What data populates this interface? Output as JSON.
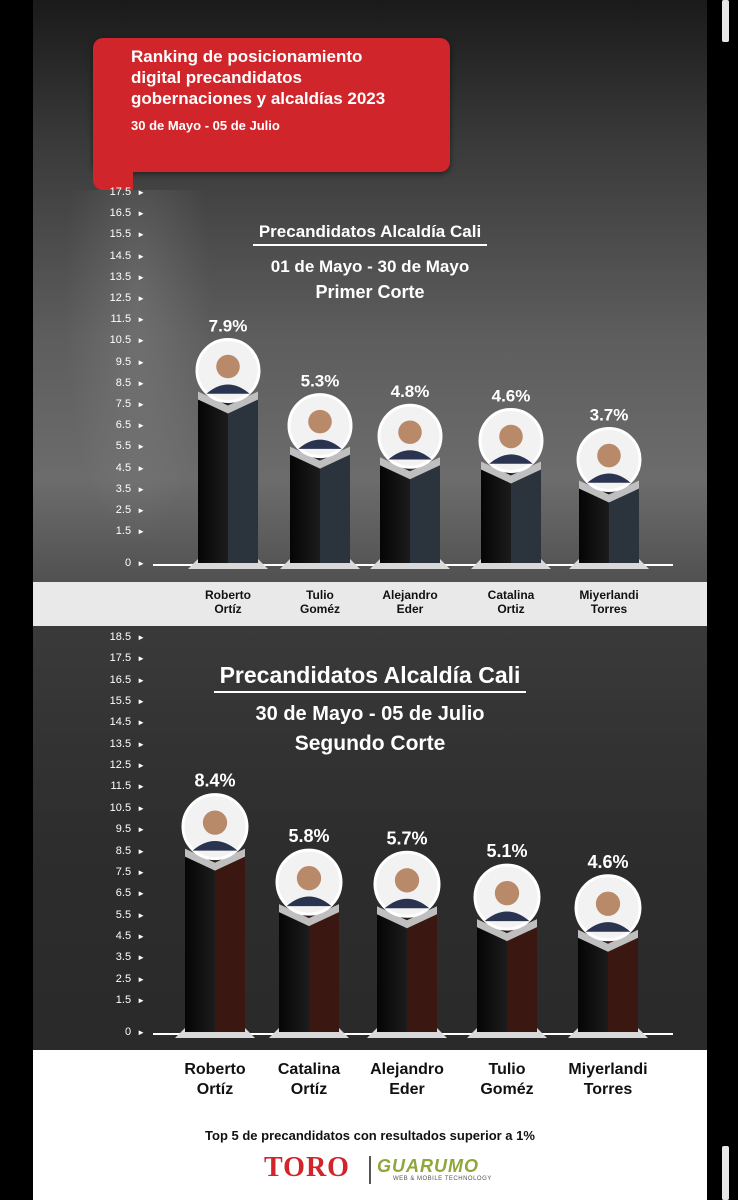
{
  "header": {
    "title": "Ranking de posicionamiento\ndigital precandidatos\ngobernaciones y alcaldías 2023",
    "date_range": "30 de Mayo - 05 de Julio"
  },
  "chart_data": [
    {
      "type": "bar",
      "title": "Precandidatos Alcaldía Cali",
      "subtitle": "01 de Mayo - 30 de Mayo",
      "subtitle2": "Primer Corte",
      "categories": [
        "Roberto\nOrtíz",
        "Tulio\nGoméz",
        "Alejandro\nEder",
        "Catalina\nOrtiz",
        "Miyerlandi\nTorres"
      ],
      "values": [
        7.9,
        5.3,
        4.8,
        4.6,
        3.7
      ],
      "value_labels": [
        "7.9%",
        "5.3%",
        "4.8%",
        "4.6%",
        "3.7%"
      ],
      "yticks": [
        "0",
        "1.5",
        "2.5",
        "3.5",
        "4.5",
        "5.5",
        "6.5",
        "7.5",
        "8.5",
        "9.5",
        "10.5",
        "11.5",
        "12.5",
        "13.5",
        "14.5",
        "15.5",
        "16.5",
        "17.5"
      ],
      "ylim": [
        0,
        17.5
      ],
      "accent_color": "#2b343d"
    },
    {
      "type": "bar",
      "title": "Precandidatos Alcaldía Cali",
      "subtitle": "30 de Mayo - 05 de Julio",
      "subtitle2": "Segundo Corte",
      "categories": [
        "Roberto\nOrtíz",
        "Catalina\nOrtíz",
        "Alejandro\nEder",
        "Tulio\nGoméz",
        "Miyerlandi\nTorres"
      ],
      "values": [
        8.4,
        5.8,
        5.7,
        5.1,
        4.6
      ],
      "value_labels": [
        "8.4%",
        "5.8%",
        "5.7%",
        "5.1%",
        "4.6%"
      ],
      "yticks": [
        "0",
        "1.5",
        "2.5",
        "3.5",
        "4.5",
        "5.5",
        "6.5",
        "7.5",
        "8.5",
        "9.5",
        "10.5",
        "11.5",
        "12.5",
        "13.5",
        "14.5",
        "15.5",
        "16.5",
        "17.5",
        "18.5"
      ],
      "ylim": [
        0,
        18.5
      ],
      "accent_color": "#3b1712"
    }
  ],
  "footer": {
    "note": "Top 5 de precandidatos con resultados superior a 1%",
    "logo_left": "TORO",
    "logo_right": "GUARUMO",
    "logo_right_tagline": "WEB & MOBILE TECHNOLOGY"
  },
  "colors": {
    "brand_red": "#d0252a",
    "guarumo_green": "#8fa63a"
  }
}
